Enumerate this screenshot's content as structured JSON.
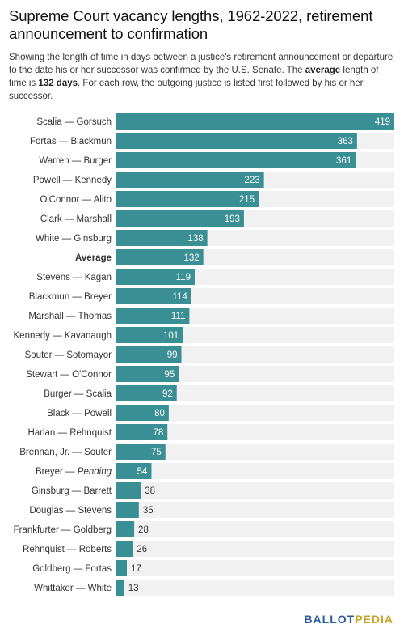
{
  "title": "Supreme Court vacancy lengths, 1962-2022, retirement announcement to confirmation",
  "subtitle": {
    "part1": "Showing the length of time in days between a justice's retirement announcement or departure to the date his or her successor was confirmed by the U.S. Senate. The ",
    "bold1": "average",
    "part2": " length of time is ",
    "bold2": "132 days",
    "part3": ". For each row, the outgoing justice is listed first followed by his or her successor."
  },
  "logo": {
    "part1": "BALLOT",
    "part2": "PEDIA"
  },
  "colors": {
    "bar": "#3a8f95",
    "track": "#f1f1f1",
    "inside_label": "#ffffff",
    "outside_label": "#333333"
  },
  "chart_data": {
    "type": "bar",
    "orientation": "horizontal",
    "xlim": [
      0,
      419
    ],
    "categories": [
      "Scalia — Gorsuch",
      "Fortas — Blackmun",
      "Warren — Burger",
      "Powell — Kennedy",
      "O'Connor — Alito",
      "Clark — Marshall",
      "White — Ginsburg",
      "Average",
      "Stevens — Kagan",
      "Blackmun — Breyer",
      "Marshall — Thomas",
      "Kennedy — Kavanaugh",
      "Souter — Sotomayor",
      "Stewart — O'Connor",
      "Burger — Scalia",
      "Black — Powell",
      "Harlan — Rehnquist",
      "Brennan, Jr. — Souter",
      "Breyer — Pending",
      "Ginsburg — Barrett",
      "Douglas — Stevens",
      "Frankfurter — Goldberg",
      "Rehnquist — Roberts",
      "Goldberg — Fortas",
      "Whittaker — White"
    ],
    "values": [
      419,
      363,
      361,
      223,
      215,
      193,
      138,
      132,
      119,
      114,
      111,
      101,
      99,
      95,
      92,
      80,
      78,
      75,
      54,
      38,
      35,
      28,
      26,
      17,
      13
    ],
    "bold_category": "Average",
    "italic_part": {
      "category": "Breyer — Pending",
      "text": "Pending"
    }
  }
}
